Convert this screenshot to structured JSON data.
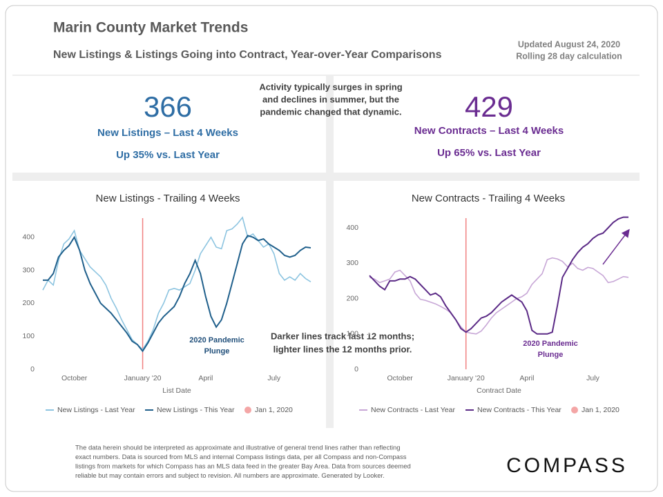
{
  "header": {
    "title": "Marin County Market Trends",
    "subtitle": "New Listings & Listings Going into Contract, Year-over-Year Comparisons",
    "updated": "Updated August 24, 2020",
    "note": "Rolling 28 day calculation"
  },
  "stats": [
    {
      "value": 366,
      "label": "New Listings – Last 4 Weeks",
      "change": "Up 35% vs. Last Year",
      "color": "#2e6da4"
    },
    {
      "value": 429,
      "label": "New Contracts – Last 4 Weeks",
      "change": "Up 65% vs. Last Year",
      "color": "#6a2c91"
    }
  ],
  "callouts": {
    "seasonal": [
      "Activity typically surges in spring",
      "and declines in summer, but the",
      "pandemic changed that dynamic."
    ],
    "lines": [
      "Darker lines track last 12 months;",
      "lighter lines the 12 months prior."
    ]
  },
  "chart_data": [
    {
      "type": "line",
      "title": "New Listings - Trailing 4 Weeks",
      "x_label": "List Date",
      "categories": [
        null,
        null,
        null,
        null,
        null,
        null,
        "October",
        null,
        null,
        null,
        null,
        null,
        null,
        null,
        null,
        null,
        null,
        null,
        null,
        "January '20",
        null,
        null,
        null,
        null,
        null,
        null,
        null,
        null,
        null,
        null,
        null,
        "April",
        null,
        null,
        null,
        null,
        null,
        null,
        null,
        null,
        null,
        null,
        null,
        null,
        "July",
        null,
        null,
        null,
        null,
        null,
        null,
        null
      ],
      "series": [
        {
          "name": "New Listings - Last Year",
          "color": "#8cc4e0",
          "values": [
            240,
            270,
            255,
            330,
            380,
            395,
            420,
            360,
            335,
            310,
            295,
            280,
            255,
            215,
            185,
            150,
            120,
            90,
            75,
            60,
            85,
            120,
            170,
            200,
            240,
            245,
            240,
            250,
            260,
            300,
            350,
            375,
            400,
            370,
            365,
            420,
            425,
            440,
            460,
            400,
            410,
            390,
            370,
            380,
            350,
            290,
            270,
            280,
            270,
            290,
            275,
            265
          ]
        },
        {
          "name": "New Listings - This Year",
          "color": "#1f5f8b",
          "values": [
            270,
            270,
            290,
            340,
            360,
            375,
            400,
            360,
            300,
            260,
            230,
            200,
            185,
            170,
            150,
            130,
            110,
            85,
            75,
            55,
            80,
            110,
            140,
            160,
            175,
            190,
            220,
            260,
            290,
            330,
            290,
            220,
            160,
            128,
            150,
            200,
            260,
            320,
            380,
            405,
            400,
            390,
            395,
            380,
            370,
            360,
            345,
            340,
            345,
            360,
            370,
            368
          ]
        }
      ],
      "reference_line": {
        "name": "Jan 1, 2020",
        "color": "#f08080",
        "category": "January '20"
      },
      "annotation": [
        "2020 Pandemic",
        "Plunge"
      ],
      "annotation_color": "#1f4e79",
      "ylim": [
        0,
        460
      ],
      "yticks": [
        0,
        100,
        200,
        300,
        400
      ]
    },
    {
      "type": "line",
      "title": "New Contracts - Trailing 4 Weeks",
      "x_label": "Contract Date",
      "categories": [
        null,
        null,
        null,
        null,
        null,
        null,
        "October",
        null,
        null,
        null,
        null,
        null,
        null,
        null,
        null,
        null,
        null,
        null,
        null,
        "January '20",
        null,
        null,
        null,
        null,
        null,
        null,
        null,
        null,
        null,
        null,
        null,
        "April",
        null,
        null,
        null,
        null,
        null,
        null,
        null,
        null,
        null,
        null,
        null,
        null,
        "July",
        null,
        null,
        null,
        null,
        null,
        null,
        null
      ],
      "series": [
        {
          "name": "New Contracts - Last Year",
          "color": "#c7a6d6",
          "values": [
            260,
            255,
            245,
            250,
            255,
            275,
            280,
            265,
            250,
            215,
            198,
            195,
            190,
            185,
            178,
            170,
            160,
            140,
            120,
            105,
            102,
            100,
            108,
            125,
            145,
            160,
            170,
            180,
            190,
            200,
            205,
            215,
            240,
            255,
            270,
            310,
            315,
            312,
            305,
            290,
            300,
            285,
            280,
            288,
            285,
            275,
            265,
            245,
            248,
            255,
            262,
            260
          ]
        },
        {
          "name": "New Contracts - This Year",
          "color": "#5b2a86",
          "values": [
            265,
            250,
            235,
            225,
            250,
            250,
            255,
            255,
            262,
            255,
            240,
            225,
            210,
            215,
            205,
            180,
            160,
            140,
            115,
            105,
            115,
            130,
            145,
            150,
            160,
            175,
            190,
            200,
            210,
            200,
            190,
            165,
            110,
            100,
            100,
            100,
            105,
            180,
            260,
            285,
            310,
            330,
            345,
            355,
            370,
            380,
            385,
            400,
            415,
            425,
            430,
            430
          ]
        }
      ],
      "reference_line": {
        "name": "Jan 1, 2020",
        "color": "#f08080",
        "category": "January '20"
      },
      "annotation": [
        "2020 Pandemic",
        "Plunge"
      ],
      "annotation_color": "#6a2c91",
      "ylim": [
        0,
        440
      ],
      "yticks": [
        0,
        100,
        200,
        300,
        400
      ]
    }
  ],
  "footer": {
    "disclaimer": [
      "The data herein should be interpreted as approximate and illustrative of general trend lines rather than reflecting",
      "exact numbers. Data is sourced from MLS and internal Compass listings data, per all Compass and non-Compass",
      "listings from markets for which Compass has an MLS data feed in the greater Bay Area. Data from sources deemed",
      "reliable but may contain errors and subject to revision. All numbers are approximate. Generated by Looker."
    ],
    "logo": "COMPASS"
  }
}
